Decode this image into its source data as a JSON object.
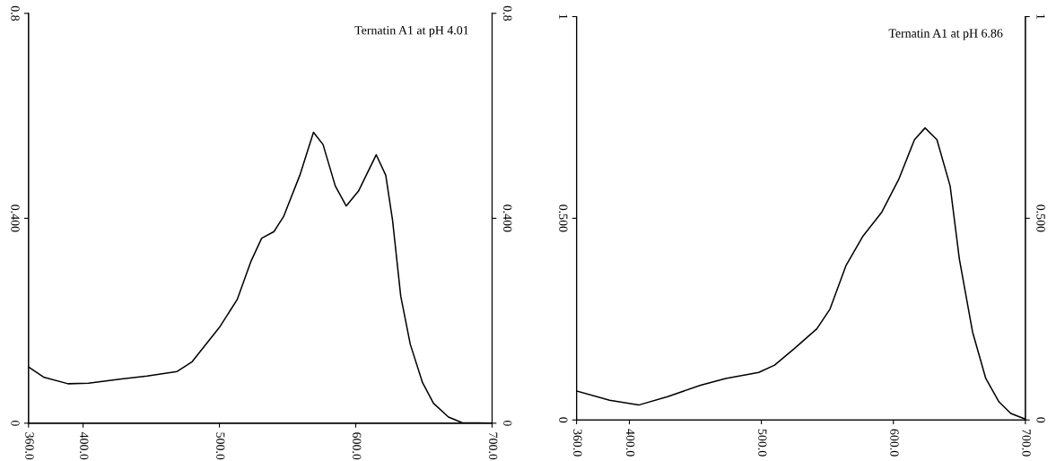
{
  "chart_data": [
    {
      "type": "line",
      "title": "Ternatin A1 at pH 4.01",
      "xlim": [
        360,
        700
      ],
      "xticks": [
        {
          "value": 360,
          "label": "360.0"
        },
        {
          "value": 400,
          "label": "400.0"
        },
        {
          "value": 500,
          "label": "500.0"
        },
        {
          "value": 600,
          "label": "600.0"
        },
        {
          "value": 700,
          "label": "700.0"
        }
      ],
      "ylim": [
        0,
        0.8
      ],
      "yticks": [
        0,
        {
          "value": 0.4,
          "label": "0.400"
        },
        0.8
      ],
      "y2lim": [
        0,
        0.8
      ],
      "y2ticks": [
        0,
        {
          "value": 0.4,
          "label": "0.400"
        },
        0.8
      ],
      "series": [
        {
          "color": "#000000",
          "x": [
            360,
            371,
            389,
            404,
            427,
            447,
            469,
            480,
            500,
            513,
            523,
            531,
            540,
            547,
            559,
            569,
            576,
            585,
            593,
            602,
            615,
            622,
            627,
            633,
            640,
            649,
            657,
            668,
            678,
            700
          ],
          "values": [
            0.11,
            0.09,
            0.077,
            0.078,
            0.086,
            0.092,
            0.101,
            0.12,
            0.187,
            0.241,
            0.315,
            0.361,
            0.374,
            0.403,
            0.484,
            0.568,
            0.544,
            0.463,
            0.424,
            0.453,
            0.524,
            0.484,
            0.396,
            0.248,
            0.154,
            0.079,
            0.039,
            0.012,
            0.001,
            0
          ]
        }
      ]
    },
    {
      "type": "line",
      "title": "Ternatin A1 at pH 6.86",
      "xlim": [
        360,
        700
      ],
      "xticks": [
        {
          "value": 360,
          "label": "360.0"
        },
        {
          "value": 400,
          "label": "400.0"
        },
        {
          "value": 500,
          "label": "500.0"
        },
        {
          "value": 600,
          "label": "600.0"
        },
        {
          "value": 700,
          "label": "700.0"
        }
      ],
      "ylim": [
        0,
        1
      ],
      "yticks": [
        0,
        {
          "value": 0.5,
          "label": "0.500"
        },
        1
      ],
      "y2lim": [
        0,
        1
      ],
      "y2ticks": [
        0,
        {
          "value": 0.5,
          "label": "0.500"
        },
        1
      ],
      "series": [
        {
          "color": "#000000",
          "x": [
            360,
            385,
            407,
            429,
            454,
            473,
            498,
            510,
            525,
            542,
            552,
            564,
            577,
            591,
            604,
            616,
            624,
            633,
            643,
            650,
            660,
            670,
            680,
            689,
            700
          ],
          "values": [
            0.072,
            0.049,
            0.037,
            0.058,
            0.086,
            0.103,
            0.118,
            0.136,
            0.177,
            0.226,
            0.275,
            0.382,
            0.456,
            0.514,
            0.596,
            0.695,
            0.724,
            0.695,
            0.58,
            0.399,
            0.218,
            0.103,
            0.045,
            0.016,
            0.002
          ]
        }
      ]
    }
  ]
}
